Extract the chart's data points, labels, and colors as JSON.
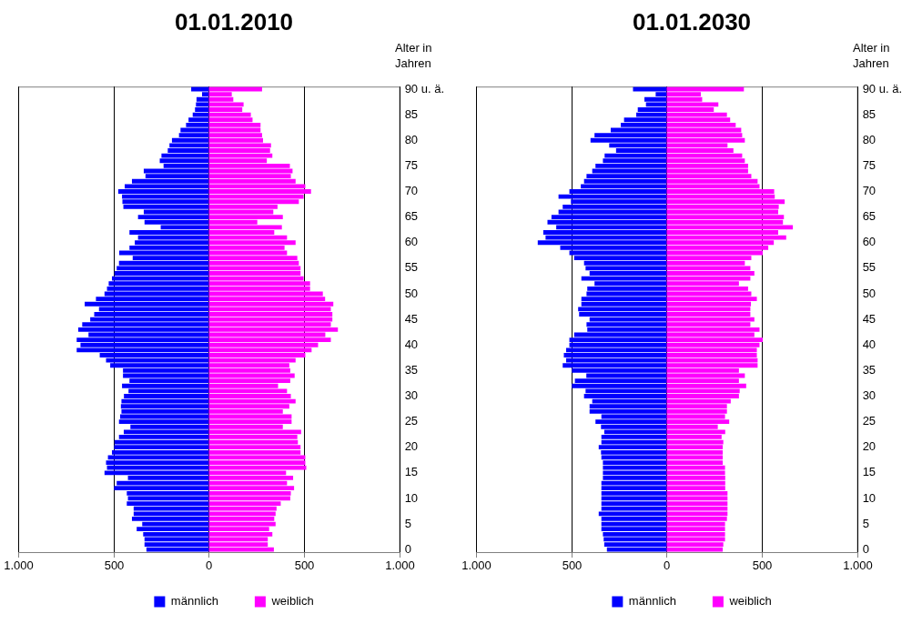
{
  "chart_data": [
    {
      "type": "bar",
      "title": "01.01.2010",
      "ylabel": "Alter in Jahren",
      "orientation": "horizontal",
      "stacked": true,
      "grid": "x",
      "legend": "bottom",
      "categories": [
        "90 u. ä.",
        null,
        null,
        null,
        null,
        "85",
        null,
        null,
        null,
        null,
        "80",
        null,
        null,
        null,
        null,
        "75",
        null,
        null,
        null,
        null,
        "70",
        null,
        null,
        null,
        null,
        "65",
        null,
        null,
        null,
        null,
        "60",
        null,
        null,
        null,
        null,
        "55",
        null,
        null,
        null,
        null,
        "50",
        null,
        null,
        null,
        null,
        "45",
        null,
        null,
        null,
        null,
        "40",
        null,
        null,
        null,
        null,
        "35",
        null,
        null,
        null,
        null,
        "30",
        null,
        null,
        null,
        null,
        "25",
        null,
        null,
        null,
        null,
        "20",
        null,
        null,
        null,
        null,
        "15",
        null,
        null,
        null,
        null,
        "10",
        null,
        null,
        null,
        null,
        "5",
        null,
        null,
        null,
        null,
        "0"
      ],
      "xlim": [
        -1000,
        1000
      ],
      "xticks": [
        {
          "value": -1000,
          "label": "1.000"
        },
        {
          "value": -500,
          "label": "500"
        },
        {
          "value": 0,
          "label": "0"
        },
        {
          "value": 500,
          "label": "500"
        },
        {
          "value": 1000,
          "label": "1.000"
        }
      ],
      "series": [
        {
          "name": "männlich",
          "color": "#0000ff",
          "values": [
            -92,
            -35,
            -64,
            -67,
            -72,
            -84,
            -106,
            -119,
            -148,
            -156,
            -193,
            -206,
            -215,
            -248,
            -257,
            -237,
            -341,
            -332,
            -403,
            -441,
            -475,
            -455,
            -453,
            -448,
            -341,
            -371,
            -337,
            -252,
            -416,
            -371,
            -388,
            -416,
            -470,
            -399,
            -471,
            -483,
            -495,
            -508,
            -525,
            -534,
            -547,
            -592,
            -651,
            -576,
            -601,
            -622,
            -664,
            -685,
            -631,
            -693,
            -673,
            -693,
            -572,
            -539,
            -517,
            -450,
            -450,
            -416,
            -455,
            -421,
            -445,
            -458,
            -461,
            -458,
            -465,
            -471,
            -411,
            -446,
            -471,
            -495,
            -497,
            -508,
            -529,
            -539,
            -534,
            -547,
            -424,
            -483,
            -497,
            -430,
            -424,
            -430,
            -394,
            -394,
            -403,
            -349,
            -378,
            -344,
            -337,
            -337,
            -327
          ]
        },
        {
          "name": "weiblich",
          "color": "#ff00ff",
          "values": [
            280,
            121,
            129,
            183,
            176,
            221,
            230,
            272,
            272,
            280,
            285,
            327,
            322,
            334,
            305,
            426,
            440,
            431,
            456,
            507,
            537,
            498,
            473,
            361,
            339,
            389,
            255,
            384,
            344,
            411,
            456,
            398,
            411,
            465,
            473,
            482,
            482,
            498,
            532,
            532,
            599,
            611,
            654,
            641,
            649,
            649,
            641,
            678,
            612,
            641,
            574,
            540,
            507,
            456,
            423,
            428,
            451,
            428,
            364,
            411,
            431,
            456,
            423,
            389,
            435,
            435,
            389,
            485,
            465,
            468,
            482,
            482,
            507,
            507,
            512,
            406,
            443,
            411,
            448,
            431,
            428,
            378,
            356,
            351,
            344,
            351,
            317,
            334,
            310,
            310,
            342
          ]
        }
      ]
    },
    {
      "type": "bar",
      "title": "01.01.2030",
      "ylabel": "Alter in Jahren",
      "orientation": "horizontal",
      "stacked": true,
      "grid": "x",
      "legend": "bottom",
      "categories": [
        "90 u. ä.",
        null,
        null,
        null,
        null,
        "85",
        null,
        null,
        null,
        null,
        "80",
        null,
        null,
        null,
        null,
        "75",
        null,
        null,
        null,
        null,
        "70",
        null,
        null,
        null,
        null,
        "65",
        null,
        null,
        null,
        null,
        "60",
        null,
        null,
        null,
        null,
        "55",
        null,
        null,
        null,
        null,
        "50",
        null,
        null,
        null,
        null,
        "45",
        null,
        null,
        null,
        null,
        "40",
        null,
        null,
        null,
        null,
        "35",
        null,
        null,
        null,
        null,
        "30",
        null,
        null,
        null,
        null,
        "25",
        null,
        null,
        null,
        null,
        "20",
        null,
        null,
        null,
        null,
        "15",
        null,
        null,
        null,
        null,
        "10",
        null,
        null,
        null,
        null,
        "5",
        null,
        null,
        null,
        null,
        "0"
      ],
      "xlim": [
        -1000,
        1000
      ],
      "xticks": [
        {
          "value": -1000,
          "label": "1.000"
        },
        {
          "value": -500,
          "label": "500"
        },
        {
          "value": 0,
          "label": "0"
        },
        {
          "value": 500,
          "label": "500"
        },
        {
          "value": 1000,
          "label": "1.000"
        }
      ],
      "series": [
        {
          "name": "männlich",
          "color": "#0000ff",
          "values": [
            -176,
            -57,
            -116,
            -108,
            -151,
            -159,
            -223,
            -240,
            -293,
            -378,
            -399,
            -301,
            -265,
            -325,
            -334,
            -373,
            -390,
            -420,
            -433,
            -450,
            -510,
            -567,
            -502,
            -545,
            -567,
            -604,
            -625,
            -579,
            -647,
            -635,
            -676,
            -558,
            -510,
            -485,
            -433,
            -425,
            -404,
            -447,
            -378,
            -416,
            -420,
            -447,
            -447,
            -464,
            -459,
            -404,
            -420,
            -416,
            -485,
            -510,
            -510,
            -527,
            -539,
            -527,
            -545,
            -497,
            -421,
            -481,
            -497,
            -425,
            -433,
            -390,
            -404,
            -404,
            -342,
            -373,
            -344,
            -327,
            -342,
            -342,
            -356,
            -344,
            -342,
            -334,
            -334,
            -334,
            -334,
            -342,
            -342,
            -342,
            -342,
            -342,
            -342,
            -356,
            -342,
            -342,
            -342,
            -334,
            -330,
            -327,
            -313
          ]
        },
        {
          "name": "weiblich",
          "color": "#ff00ff",
          "values": [
            406,
            180,
            187,
            272,
            248,
            317,
            334,
            363,
            392,
            397,
            411,
            320,
            351,
            397,
            411,
            428,
            428,
            445,
            478,
            488,
            565,
            568,
            620,
            589,
            586,
            616,
            611,
            663,
            586,
            628,
            563,
            534,
            505,
            445,
            411,
            440,
            461,
            440,
            380,
            428,
            445,
            474,
            443,
            440,
            440,
            461,
            440,
            488,
            461,
            505,
            488,
            474,
            474,
            478,
            478,
            380,
            411,
            380,
            418,
            384,
            380,
            337,
            317,
            317,
            307,
            329,
            269,
            308,
            289,
            298,
            295,
            295,
            295,
            295,
            307,
            307,
            308,
            308,
            308,
            320,
            320,
            320,
            320,
            320,
            317,
            307,
            307,
            307,
            307,
            298,
            295
          ]
        }
      ]
    }
  ]
}
